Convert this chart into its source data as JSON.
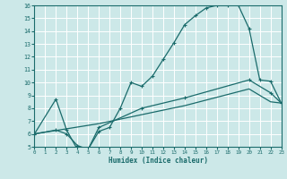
{
  "title": "",
  "xlabel": "Humidex (Indice chaleur)",
  "xlim": [
    0,
    23
  ],
  "ylim": [
    5,
    16
  ],
  "xticks": [
    0,
    1,
    2,
    3,
    4,
    5,
    6,
    7,
    8,
    9,
    10,
    11,
    12,
    13,
    14,
    15,
    16,
    17,
    18,
    19,
    20,
    21,
    22,
    23
  ],
  "yticks": [
    5,
    6,
    7,
    8,
    9,
    10,
    11,
    12,
    13,
    14,
    15,
    16
  ],
  "bg_color": "#cce8e8",
  "grid_color": "#aacccc",
  "line_color": "#1a6b6b",
  "line1_x": [
    0,
    2,
    3,
    4,
    5,
    6,
    7,
    8,
    9,
    10,
    11,
    12,
    13,
    14,
    15,
    16,
    17,
    18,
    19,
    20,
    21,
    22,
    23
  ],
  "line1_y": [
    6.0,
    8.7,
    6.3,
    4.8,
    4.8,
    6.2,
    6.5,
    8.0,
    10.0,
    9.7,
    10.5,
    11.8,
    13.1,
    14.5,
    15.2,
    15.8,
    16.0,
    16.0,
    16.0,
    14.2,
    10.2,
    10.1,
    8.4
  ],
  "line2_x": [
    0,
    2,
    3,
    4,
    5,
    6,
    10,
    14,
    20,
    22,
    23
  ],
  "line2_y": [
    6.0,
    6.3,
    6.0,
    5.1,
    4.8,
    6.5,
    8.0,
    8.8,
    10.2,
    9.2,
    8.4
  ],
  "line3_x": [
    0,
    6,
    10,
    14,
    20,
    22,
    23
  ],
  "line3_y": [
    6.0,
    6.8,
    7.5,
    8.2,
    9.5,
    8.5,
    8.4
  ]
}
